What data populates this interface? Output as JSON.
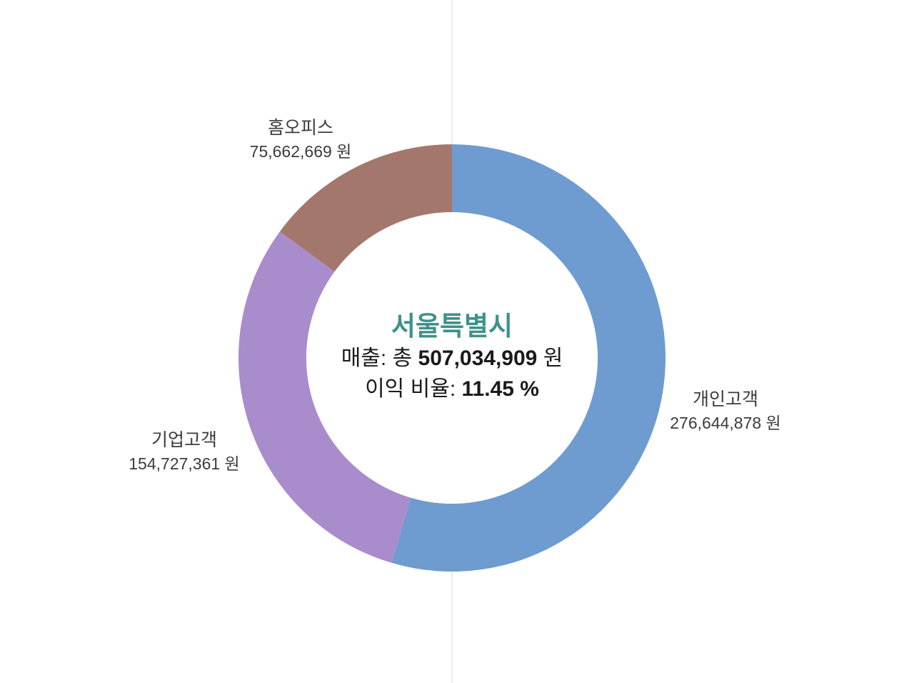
{
  "page": {
    "background_color": "#ffffff",
    "divider_color": "#ececec"
  },
  "chart_data": {
    "type": "pie",
    "subtype": "donut",
    "title": "서울특별시",
    "direction": "clockwise",
    "start_angle_deg": 0,
    "inner_radius_ratio": 0.682,
    "title_color": "#3D928A",
    "label_text_color": "#3C3C3C",
    "center_text_color": "#1A1A1A",
    "unit": "원",
    "total_revenue": 507034909,
    "profit_ratio_percent": 11.45,
    "center_label": {
      "title": "서울특별시",
      "revenue_prefix": "매출: 총 ",
      "revenue_value": "507,034,909",
      "revenue_suffix": " 원",
      "profit_prefix": "이익 비율: ",
      "profit_value": "11.45 %"
    },
    "segments": [
      {
        "label": "개인고객",
        "value": 276644878,
        "display": "276,644,878 원",
        "color": "#6E9BD0",
        "label_side": "right"
      },
      {
        "label": "기업고객",
        "value": 154727361,
        "display": "154,727,361 원",
        "color": "#A98CCB",
        "label_side": "left"
      },
      {
        "label": "홈오피스",
        "value": 75662669,
        "display": "75,662,669 원",
        "color": "#A4776D",
        "label_side": "top-left"
      }
    ]
  }
}
